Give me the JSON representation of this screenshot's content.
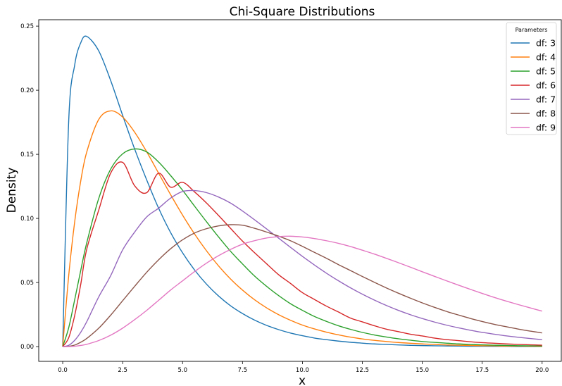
{
  "chart_data": {
    "type": "line",
    "title": "Chi-Square Distributions",
    "xlabel": "x",
    "ylabel": "Density",
    "xlim": [
      -1.0,
      20.8
    ],
    "ylim": [
      -0.0115,
      0.255
    ],
    "x_ticks": [
      0.0,
      2.5,
      5.0,
      7.5,
      10.0,
      12.5,
      15.0,
      17.5,
      20.0
    ],
    "x_tick_labels": [
      "0.0",
      "2.5",
      "5.0",
      "7.5",
      "10.0",
      "12.5",
      "15.0",
      "17.5",
      "20.0"
    ],
    "y_ticks": [
      0.0,
      0.05,
      0.1,
      0.15,
      0.2,
      0.25
    ],
    "y_tick_labels": [
      "0.00",
      "0.05",
      "0.10",
      "0.15",
      "0.20",
      "0.25"
    ],
    "grid": false,
    "legend": {
      "title": "Parameters",
      "placement": "top-right"
    },
    "x": [
      0,
      0.25,
      0.5,
      0.75,
      1,
      1.5,
      2,
      2.5,
      3,
      3.5,
      4,
      4.5,
      5,
      5.5,
      6,
      6.5,
      7,
      7.5,
      8,
      8.5,
      9,
      9.5,
      10,
      10.5,
      11,
      11.5,
      12,
      12.5,
      13,
      13.5,
      14,
      14.5,
      15,
      15.5,
      16,
      16.5,
      17,
      17.5,
      18,
      18.5,
      19,
      19.5,
      20
    ],
    "series": [
      {
        "name": "df: 3",
        "color": "#1f77b4",
        "values": [
          0,
          0.176,
          0.2197,
          0.2369,
          0.242,
          0.2308,
          0.2076,
          0.1804,
          0.1542,
          0.1302,
          0.108,
          0.089,
          0.0732,
          0.0598,
          0.0487,
          0.0395,
          0.0319,
          0.0258,
          0.0207,
          0.0166,
          0.0133,
          0.0106,
          0.0085,
          0.0067,
          0.0054,
          0.0043,
          0.0034,
          0.0027,
          0.0021,
          0.0017,
          0.0013,
          0.001,
          0.0008,
          0.0006,
          0.0005,
          0.0004,
          0.0003,
          0.0003,
          0.0002,
          0.0002,
          0.0001,
          0.0001,
          0.0001
        ]
      },
      {
        "name": "df: 4",
        "color": "#ff7f0e",
        "values": [
          0,
          0.0553,
          0.0974,
          0.1289,
          0.1516,
          0.1771,
          0.1839,
          0.1791,
          0.1673,
          0.1521,
          0.1353,
          0.1186,
          0.1026,
          0.0879,
          0.0747,
          0.063,
          0.0528,
          0.0441,
          0.0366,
          0.0303,
          0.025,
          0.0206,
          0.0168,
          0.0138,
          0.0113,
          0.0092,
          0.0074,
          0.006,
          0.0049,
          0.004,
          0.0032,
          0.0026,
          0.0021,
          0.0017,
          0.0013,
          0.0011,
          0.0009,
          0.0007,
          0.0006,
          0.0004,
          0.0004,
          0.0003,
          0.0002
        ]
      },
      {
        "name": "df: 5",
        "color": "#2ca02c",
        "values": [
          0,
          0.0147,
          0.0366,
          0.0592,
          0.0807,
          0.1154,
          0.1384,
          0.1504,
          0.1542,
          0.1519,
          0.144,
          0.1335,
          0.122,
          0.1096,
          0.0974,
          0.0856,
          0.0744,
          0.0645,
          0.0551,
          0.0471,
          0.0399,
          0.0335,
          0.0283,
          0.0235,
          0.0197,
          0.0163,
          0.0135,
          0.0111,
          0.0091,
          0.0075,
          0.0061,
          0.005,
          0.004,
          0.0033,
          0.0027,
          0.0021,
          0.0017,
          0.0014,
          0.0011,
          0.0009,
          0.0007,
          0.0006,
          0.0005
        ]
      },
      {
        "name": "df: 6",
        "color": "#d62728",
        "values": [
          0,
          0.0069,
          0.0243,
          0.0483,
          0.0758,
          0.1063,
          0.1353,
          0.1437,
          0.1255,
          0.12,
          0.1353,
          0.1244,
          0.1282,
          0.1207,
          0.112,
          0.1023,
          0.0923,
          0.0823,
          0.0733,
          0.0647,
          0.0562,
          0.0493,
          0.0421,
          0.0368,
          0.0316,
          0.027,
          0.0223,
          0.0193,
          0.0163,
          0.0136,
          0.0117,
          0.0097,
          0.0083,
          0.0067,
          0.0055,
          0.0047,
          0.0038,
          0.0031,
          0.0026,
          0.0021,
          0.0017,
          0.0014,
          0.0011
        ]
      },
      {
        "name": "df: 7",
        "color": "#9467bd",
        "values": [
          0,
          0.001,
          0.0049,
          0.0111,
          0.0193,
          0.0387,
          0.0553,
          0.0754,
          0.0893,
          0.1011,
          0.108,
          0.1158,
          0.121,
          0.1217,
          0.1201,
          0.1167,
          0.112,
          0.1058,
          0.099,
          0.0919,
          0.0847,
          0.0775,
          0.0704,
          0.0637,
          0.0573,
          0.0514,
          0.0459,
          0.0409,
          0.0363,
          0.0321,
          0.0283,
          0.0249,
          0.0219,
          0.0192,
          0.0168,
          0.0147,
          0.0128,
          0.0111,
          0.0097,
          0.0084,
          0.0073,
          0.0063,
          0.0054
        ]
      },
      {
        "name": "df: 8",
        "color": "#8c564b",
        "values": [
          0,
          0.0002,
          0.0012,
          0.0034,
          0.0063,
          0.0143,
          0.0245,
          0.0358,
          0.047,
          0.0579,
          0.0677,
          0.0763,
          0.0833,
          0.0886,
          0.092,
          0.0942,
          0.0951,
          0.0947,
          0.0923,
          0.0894,
          0.0862,
          0.0826,
          0.0782,
          0.0735,
          0.0689,
          0.064,
          0.0594,
          0.0547,
          0.0502,
          0.0458,
          0.0417,
          0.0378,
          0.0341,
          0.0307,
          0.0275,
          0.0247,
          0.022,
          0.0196,
          0.0174,
          0.0155,
          0.0137,
          0.0121,
          0.0107
        ]
      },
      {
        "name": "df: 9",
        "color": "#e377c2",
        "values": [
          0,
          4e-05,
          0.0003,
          0.0009,
          0.0018,
          0.0047,
          0.0089,
          0.0144,
          0.021,
          0.0282,
          0.0361,
          0.0441,
          0.0513,
          0.0585,
          0.0651,
          0.0709,
          0.0758,
          0.0799,
          0.0826,
          0.0847,
          0.0858,
          0.0861,
          0.0855,
          0.0843,
          0.0826,
          0.0806,
          0.0781,
          0.0752,
          0.0722,
          0.0689,
          0.0655,
          0.062,
          0.0584,
          0.0549,
          0.0514,
          0.048,
          0.0447,
          0.0415,
          0.0384,
          0.0355,
          0.0328,
          0.0302,
          0.0277
        ]
      }
    ]
  }
}
